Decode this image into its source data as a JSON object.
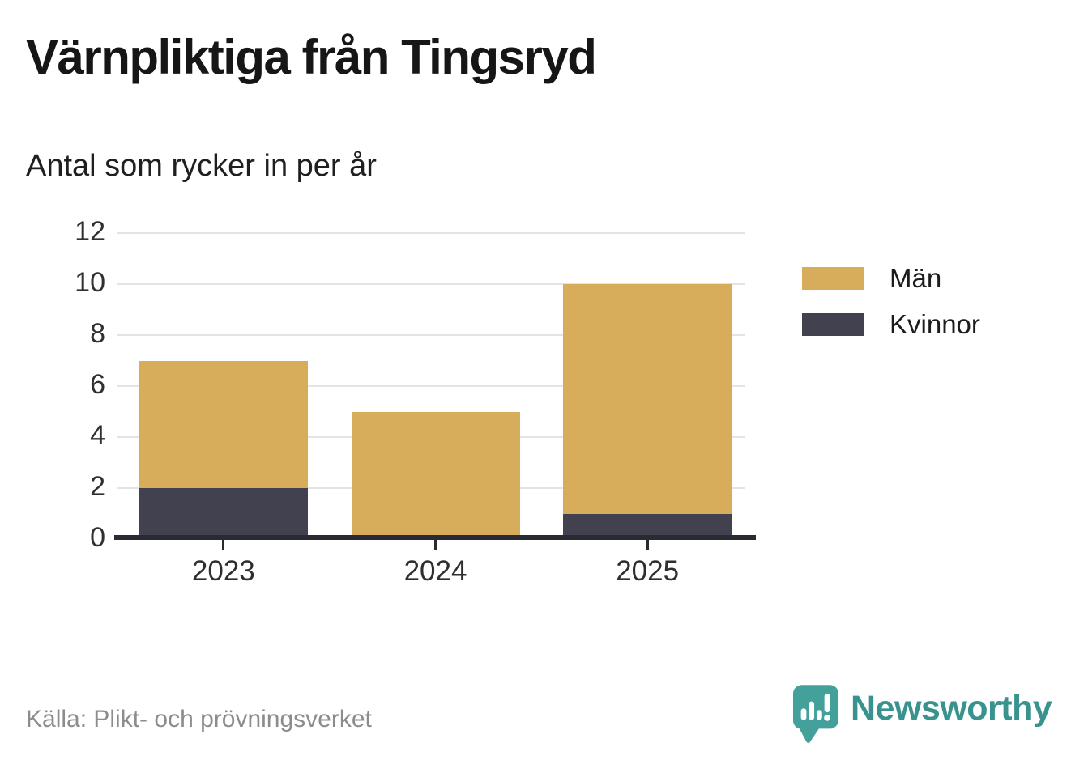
{
  "title": "Värnpliktiga från Tingsryd",
  "subtitle": "Antal som rycker in per år",
  "source": "Källa: Plikt- och prövningsverket",
  "branding": {
    "name": "Newsworthy",
    "icon": "newsworthy-chart-bubble-icon",
    "text_color": "#38938e",
    "icon_color": "#44a09b"
  },
  "colors": {
    "man": "#d7ac5b",
    "kvinnor": "#42414f",
    "grid": "#e4e4e4",
    "axis": "#2a2a32"
  },
  "legend": [
    {
      "label": "Män",
      "color": "#d7ac5b"
    },
    {
      "label": "Kvinnor",
      "color": "#42414f"
    }
  ],
  "chart_data": {
    "type": "bar",
    "stacked": true,
    "categories": [
      "2023",
      "2024",
      "2025"
    ],
    "series": [
      {
        "name": "Män",
        "values": [
          5,
          5,
          9
        ],
        "color": "#d7ac5b"
      },
      {
        "name": "Kvinnor",
        "values": [
          2,
          0,
          1
        ],
        "color": "#42414f"
      }
    ],
    "totals": [
      7,
      5,
      10
    ],
    "title": "Värnpliktiga från Tingsryd",
    "subtitle": "Antal som rycker in per år",
    "xlabel": "",
    "ylabel": "",
    "ylim": [
      0,
      12
    ],
    "yticks": [
      0,
      2,
      4,
      6,
      8,
      10,
      12
    ],
    "grid": true,
    "legend_position": "right"
  }
}
